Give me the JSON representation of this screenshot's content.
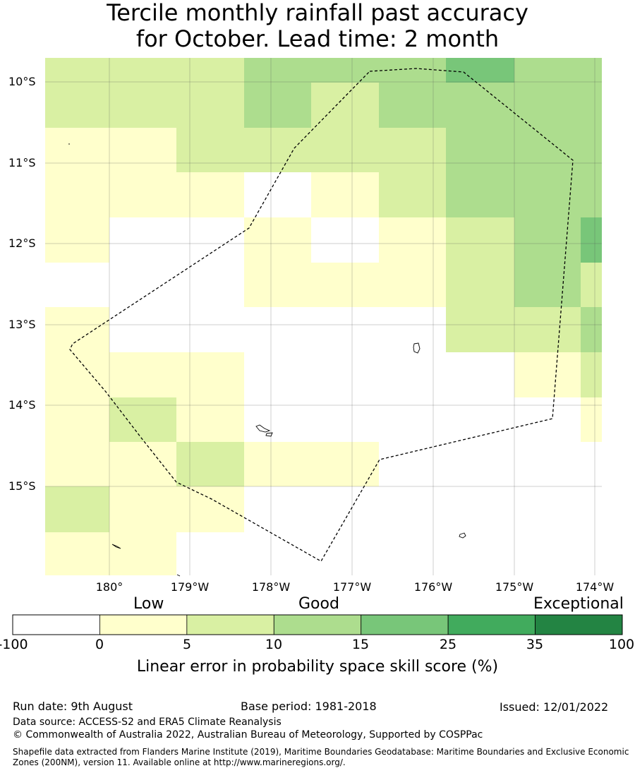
{
  "title": {
    "line1": "Tercile monthly rainfall past accuracy",
    "line2": "for October. Lead time: 2 month"
  },
  "map": {
    "lat_labels": [
      "10°S",
      "11°S",
      "12°S",
      "13°S",
      "14°S",
      "15°S"
    ],
    "lon_labels": [
      "180°",
      "179°W",
      "178°W",
      "177°W",
      "176°W",
      "175°W",
      "174°W"
    ],
    "colors": {
      "white": "#ffffff",
      "c0_5": "#ffffcc",
      "c5_10": "#d9f0a3",
      "c10_15": "#addd8e",
      "c15_25": "#78c679",
      "c25_35": "#41ab5d",
      "c35_100": "#238443"
    },
    "grid_rows": [
      [
        "c5_10",
        "c5_10",
        "c5_10",
        "c10_15",
        "c10_15",
        "c10_15",
        "c15_25",
        "c10_15",
        "c10_15"
      ],
      [
        "c5_10",
        "c5_10",
        "c5_10",
        "c10_15",
        "c5_10",
        "c10_15",
        "c10_15",
        "c10_15",
        "c10_15"
      ],
      [
        "c0_5",
        "c0_5",
        "c5_10",
        "c5_10",
        "c5_10",
        "c5_10",
        "c10_15",
        "c10_15",
        "c10_15"
      ],
      [
        "c0_5",
        "c0_5",
        "c0_5",
        "white",
        "c0_5",
        "c5_10",
        "c10_15",
        "c10_15",
        "c10_15"
      ],
      [
        "c0_5",
        "white",
        "white",
        "c0_5",
        "white",
        "c0_5",
        "c5_10",
        "c10_15",
        "c15_25"
      ],
      [
        "white",
        "white",
        "white",
        "c0_5",
        "c0_5",
        "c0_5",
        "c5_10",
        "c10_15",
        "c5_10"
      ],
      [
        "c0_5",
        "white",
        "white",
        "white",
        "white",
        "white",
        "c5_10",
        "c5_10",
        "c10_15"
      ],
      [
        "c0_5",
        "c0_5",
        "c0_5",
        "white",
        "white",
        "white",
        "white",
        "c0_5",
        "c5_10"
      ],
      [
        "c0_5",
        "c5_10",
        "c0_5",
        "white",
        "white",
        "white",
        "white",
        "white",
        "c0_5"
      ],
      [
        "c0_5",
        "c0_5",
        "c5_10",
        "c0_5",
        "c0_5",
        "white",
        "white",
        "white",
        "white"
      ],
      [
        "c5_10",
        "c0_5",
        "c0_5",
        "white",
        "white",
        "white",
        "white",
        "white",
        "white"
      ],
      [
        "c0_5",
        "c0_5",
        "white",
        "white",
        "white",
        "white",
        "white",
        "white",
        "white"
      ]
    ]
  },
  "colorbar": {
    "categories": [
      "Low",
      "Good",
      "Exceptional"
    ],
    "ticks": [
      "-100",
      "0",
      "5",
      "10",
      "15",
      "25",
      "35",
      "100"
    ],
    "segment_colors": [
      "#ffffff",
      "#ffffcc",
      "#d9f0a3",
      "#addd8e",
      "#78c679",
      "#41ab5d",
      "#238443"
    ],
    "label": "Linear error in probability space skill score (%)"
  },
  "footer": {
    "run_date": "Run date: 9th August",
    "base_period": "Base period: 1981-2018",
    "issued": "Issued: 12/01/2022",
    "data_source": "Data source: ACCESS-S2 and ERA5 Climate Reanalysis",
    "copyright": "© Commonwealth of Australia 2022, Australian Bureau of Meteorology, Supported by COSPPac",
    "shapefile": "Shapefile data extracted from Flanders Marine Institute (2019), Maritime Boundaries Geodatabase: Maritime Boundaries and Exclusive Economic Zones (200NM), version 11. Available online at http://www.marineregions.org/."
  }
}
